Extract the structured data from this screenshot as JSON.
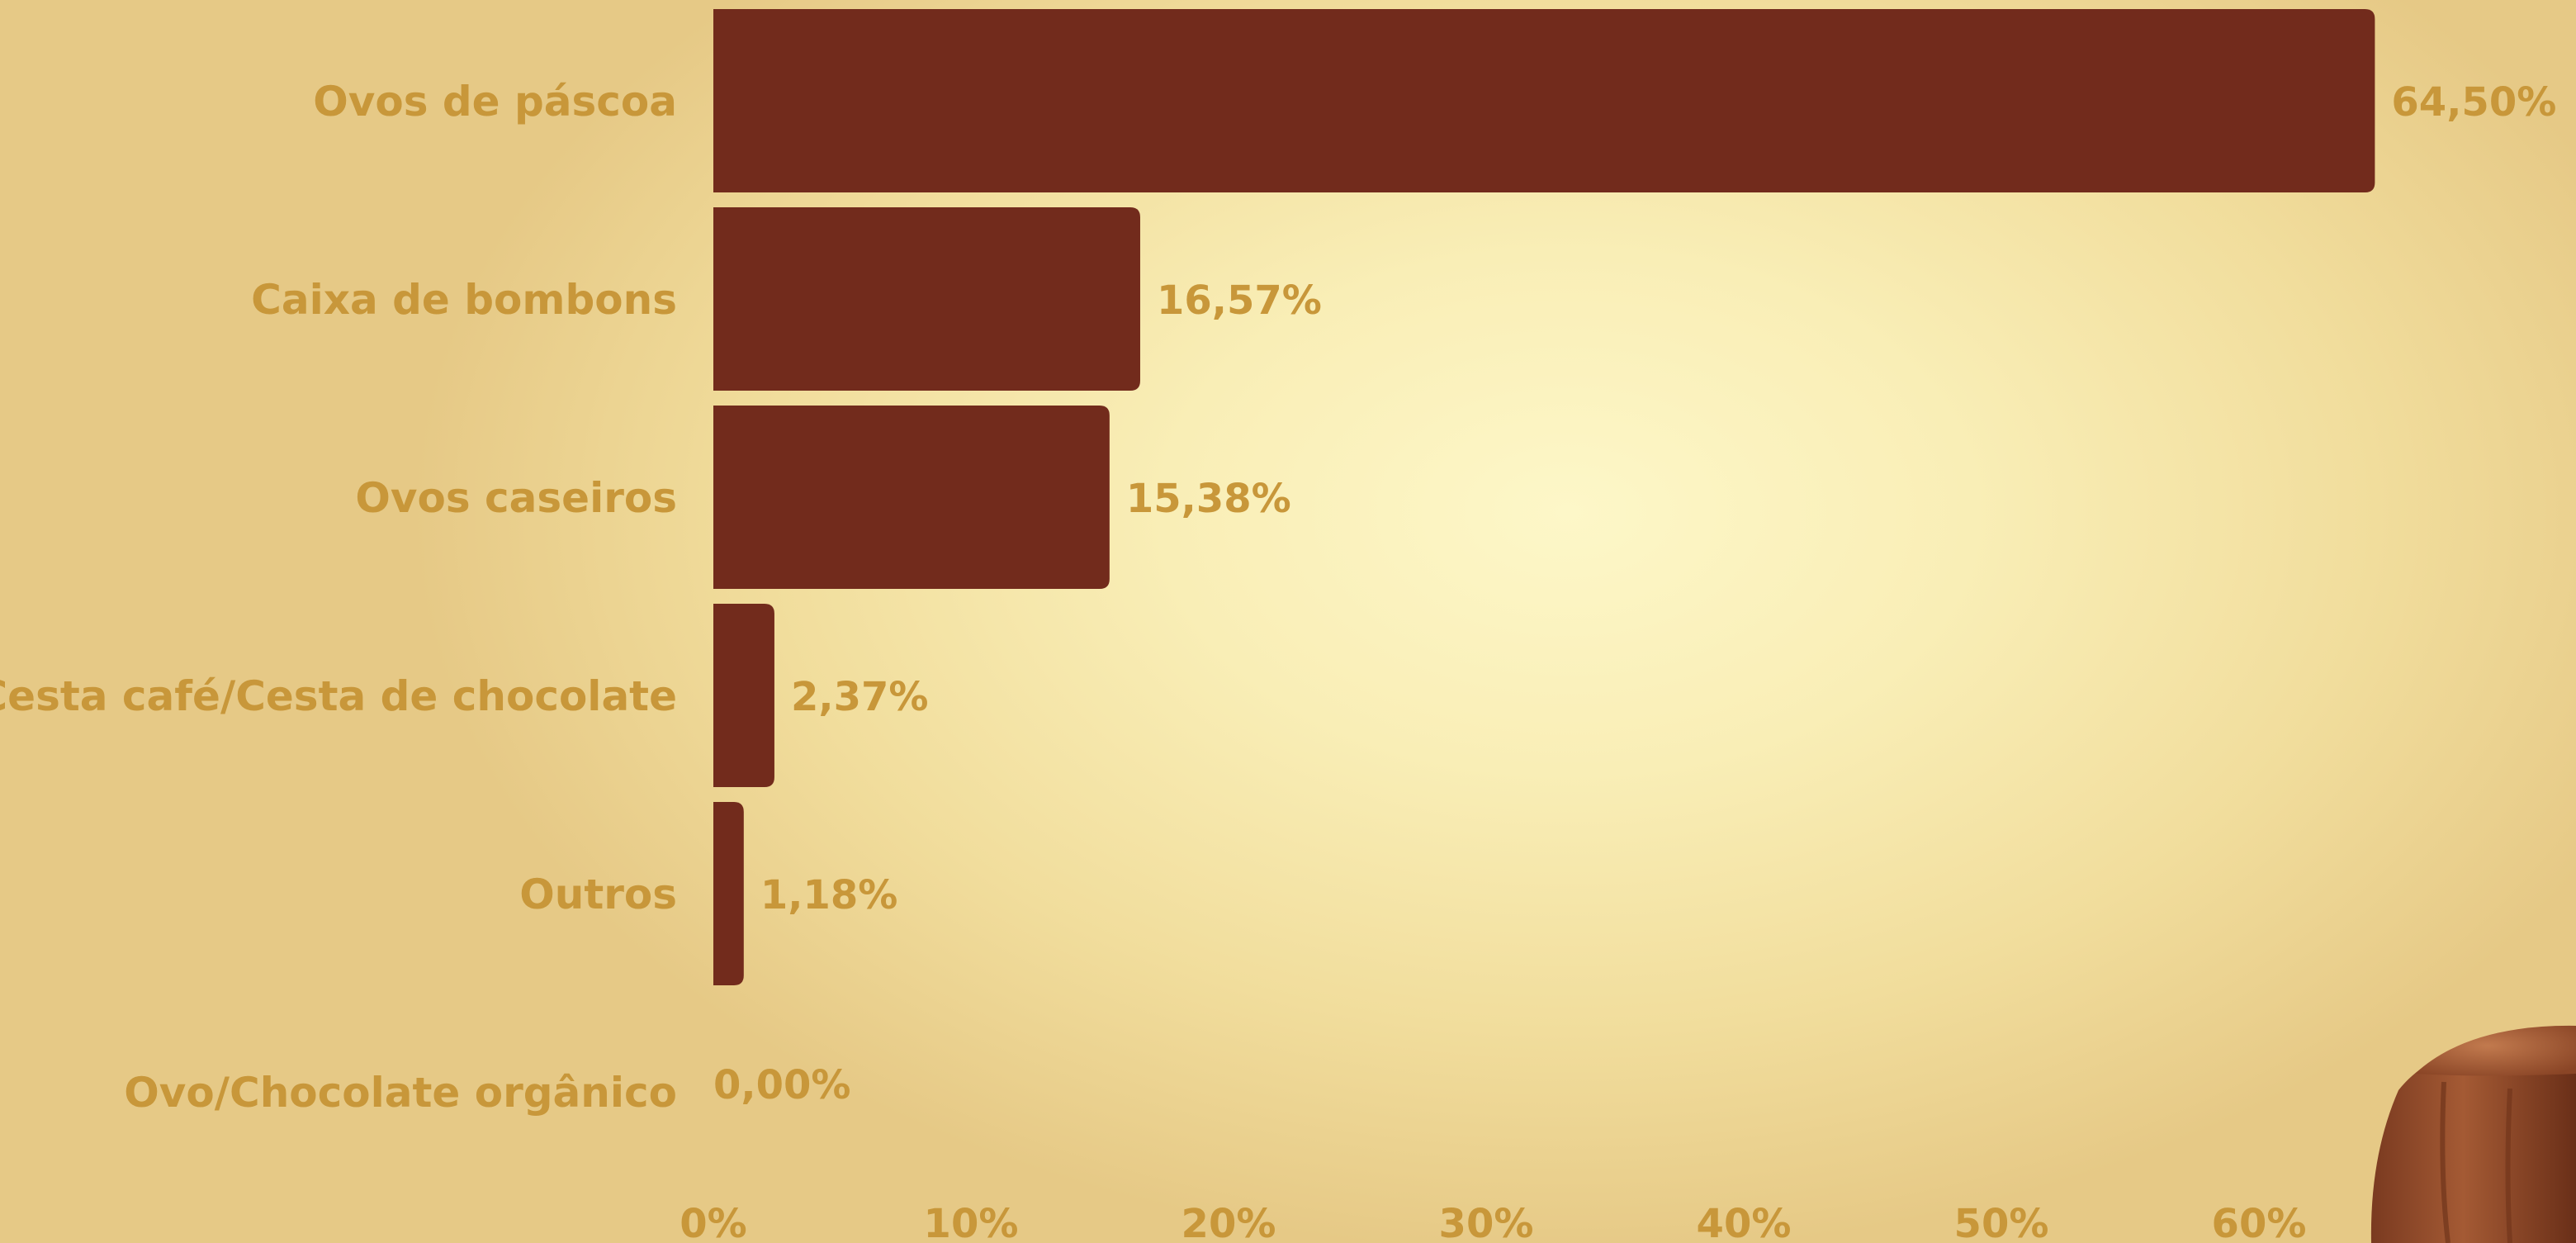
{
  "chart_data": {
    "type": "bar",
    "orientation": "horizontal",
    "categories": [
      "Ovos de páscoa",
      "Caixa de bombons",
      "Ovos caseiros",
      "Cesta café/Cesta de chocolate",
      "Outros",
      "Ovo/Chocolate orgânico"
    ],
    "values": [
      64.5,
      16.57,
      15.38,
      2.37,
      1.18,
      0.0
    ],
    "value_labels": [
      "64,50%",
      "16,57%",
      "15,38%",
      "2,37%",
      "1,18%",
      "0,00%"
    ],
    "x_ticks": [
      0,
      10,
      20,
      30,
      40,
      50,
      60
    ],
    "x_tick_labels": [
      "0%",
      "10%",
      "20%",
      "30%",
      "40%",
      "50%",
      "60%"
    ],
    "xlim": [
      0,
      64.5
    ],
    "grid": false,
    "legend": "none"
  },
  "colors": {
    "bar": "#722b1c",
    "label": "#c8973a",
    "background": "#f9eeb6",
    "decoration": "#9a4f2c"
  },
  "decoration": {
    "icon": "chocolate-bonbon-icon"
  }
}
